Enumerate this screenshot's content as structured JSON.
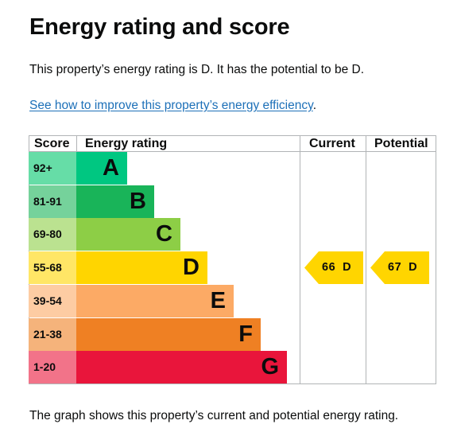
{
  "heading": "Energy rating and score",
  "intro": "This property’s energy rating is D. It has the potential to be D.",
  "improve_link": "See how to improve this property’s energy efficiency",
  "improve_link_suffix": ".",
  "footer": "The graph shows this property’s current and potential energy rating.",
  "chart_data": {
    "type": "table",
    "columns": [
      "Score",
      "Energy rating",
      "Current",
      "Potential"
    ],
    "bands": [
      {
        "letter": "A",
        "range": "92+",
        "bar_color": "#00c781",
        "score_color": "#66dda7"
      },
      {
        "letter": "B",
        "range": "81-91",
        "bar_color": "#19b459",
        "score_color": "#75d29b"
      },
      {
        "letter": "C",
        "range": "69-80",
        "bar_color": "#8dce46",
        "score_color": "#bbe290"
      },
      {
        "letter": "D",
        "range": "55-68",
        "bar_color": "#ffd500",
        "score_color": "#ffe666"
      },
      {
        "letter": "E",
        "range": "39-54",
        "bar_color": "#fcaa65",
        "score_color": "#fdcca3"
      },
      {
        "letter": "F",
        "range": "21-38",
        "bar_color": "#ef8023",
        "score_color": "#f5b37b"
      },
      {
        "letter": "G",
        "range": "1-20",
        "bar_color": "#e9153b",
        "score_color": "#f27389"
      }
    ],
    "current": {
      "score": 66,
      "letter": "D",
      "label": "66  D",
      "color": "#ffd500"
    },
    "potential": {
      "score": 67,
      "letter": "D",
      "label": "67  D",
      "color": "#ffd500"
    }
  }
}
